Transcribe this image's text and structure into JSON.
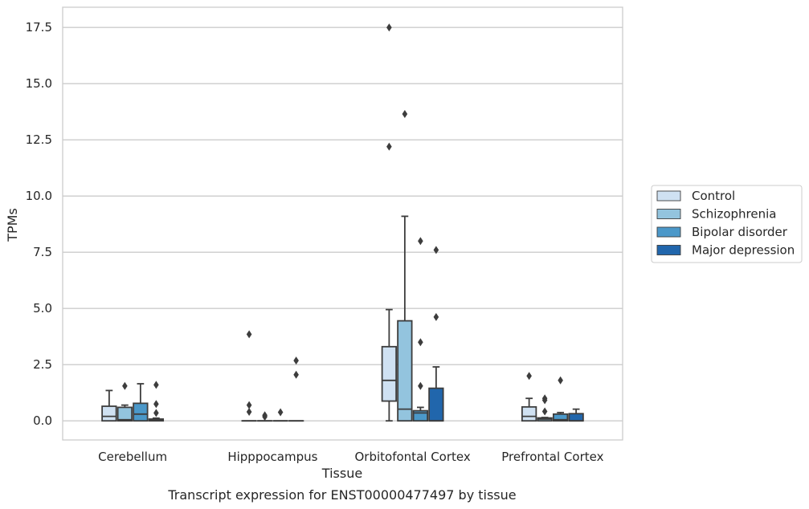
{
  "chart_data": {
    "type": "box",
    "caption": "Transcript expression for ENST00000477497 by tissue",
    "xlabel": "Tissue",
    "ylabel": "TPMs",
    "ylim": [
      -0.85,
      18.4
    ],
    "yticks": [
      "0.0",
      "2.5",
      "5.0",
      "7.5",
      "10.0",
      "12.5",
      "15.0",
      "17.5"
    ],
    "grid": true,
    "legend_position": "right",
    "categories": [
      "Cerebellum",
      "Hipppocampus",
      "Orbitofontal Cortex",
      "Prefrontal Cortex"
    ],
    "series": [
      {
        "name": "Control",
        "color": "#cfe1f2",
        "boxes": [
          {
            "whislo": 0.0,
            "q1": 0.0,
            "med": 0.2,
            "q3": 0.65,
            "whishi": 1.35,
            "fliers": []
          },
          {
            "whislo": 0.0,
            "q1": 0.0,
            "med": 0.0,
            "q3": 0.0,
            "whishi": 0.0,
            "fliers": [
              3.85,
              0.7,
              0.4
            ]
          },
          {
            "whislo": 0.0,
            "q1": 0.88,
            "med": 1.8,
            "q3": 3.3,
            "whishi": 4.95,
            "fliers": [
              17.5,
              12.2
            ]
          },
          {
            "whislo": 0.0,
            "q1": 0.0,
            "med": 0.2,
            "q3": 0.62,
            "whishi": 1.0,
            "fliers": [
              2.0
            ]
          }
        ]
      },
      {
        "name": "Schizophrenia",
        "color": "#93c4de",
        "boxes": [
          {
            "whislo": 0.0,
            "q1": 0.0,
            "med": 0.05,
            "q3": 0.6,
            "whishi": 0.7,
            "fliers": [
              1.55
            ]
          },
          {
            "whislo": 0.0,
            "q1": 0.0,
            "med": 0.0,
            "q3": 0.0,
            "whishi": 0.0,
            "fliers": [
              0.25,
              0.18
            ]
          },
          {
            "whislo": 0.0,
            "q1": 0.0,
            "med": 0.52,
            "q3": 4.45,
            "whishi": 9.1,
            "fliers": [
              13.65
            ]
          },
          {
            "whislo": 0.0,
            "q1": 0.0,
            "med": 0.08,
            "q3": 0.13,
            "whishi": 0.15,
            "fliers": [
              1.0,
              0.92,
              0.42
            ]
          }
        ]
      },
      {
        "name": "Bipolar disorder",
        "color": "#4b98c9",
        "boxes": [
          {
            "whislo": 0.0,
            "q1": 0.0,
            "med": 0.3,
            "q3": 0.78,
            "whishi": 1.65,
            "fliers": []
          },
          {
            "whislo": 0.0,
            "q1": 0.0,
            "med": 0.0,
            "q3": 0.0,
            "whishi": 0.0,
            "fliers": [
              0.38
            ]
          },
          {
            "whislo": 0.0,
            "q1": 0.0,
            "med": 0.35,
            "q3": 0.45,
            "whishi": 0.6,
            "fliers": [
              8.0,
              3.5,
              1.55
            ]
          },
          {
            "whislo": 0.0,
            "q1": 0.0,
            "med": 0.05,
            "q3": 0.3,
            "whishi": 0.37,
            "fliers": [
              1.8
            ]
          }
        ]
      },
      {
        "name": "Major depression",
        "color": "#2166ac",
        "boxes": [
          {
            "whislo": 0.0,
            "q1": 0.0,
            "med": 0.03,
            "q3": 0.08,
            "whishi": 0.12,
            "fliers": [
              1.6,
              0.75,
              0.35
            ]
          },
          {
            "whislo": 0.0,
            "q1": 0.0,
            "med": 0.0,
            "q3": 0.0,
            "whishi": 0.0,
            "fliers": [
              2.68,
              2.05
            ]
          },
          {
            "whislo": 0.0,
            "q1": 0.0,
            "med": 0.0,
            "q3": 1.45,
            "whishi": 2.4,
            "fliers": [
              7.6,
              4.62
            ]
          },
          {
            "whislo": 0.0,
            "q1": 0.0,
            "med": 0.0,
            "q3": 0.32,
            "whishi": 0.52,
            "fliers": []
          }
        ]
      }
    ]
  }
}
